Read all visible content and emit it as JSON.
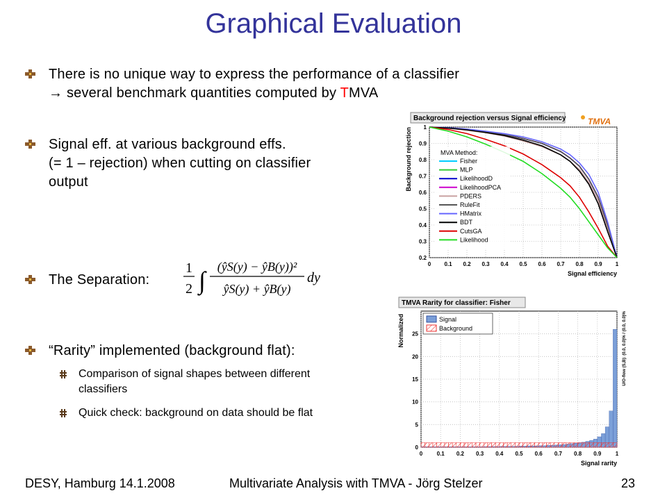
{
  "slide": {
    "title": "Graphical Evaluation",
    "bullets": [
      {
        "line1": "There is no unique way to express the performance of a classifier",
        "line2_prefix": "→ several benchmark quantities computed by ",
        "line2_highlight": "T",
        "line2_suffix": "MVA"
      },
      {
        "lines": [
          "Signal eff. at various background effs.",
          "(= 1 – rejection) when cutting on classifier",
          "output"
        ]
      },
      {
        "label": "The Separation:"
      },
      {
        "text": "“Rarity” implemented (background flat):"
      }
    ],
    "sub_bullets": [
      {
        "lines": [
          "Comparison of signal shapes between different",
          "classifiers"
        ]
      },
      {
        "lines": [
          "Quick check: background on data should be flat"
        ]
      }
    ],
    "formula": {
      "frac_num": "1",
      "frac_den": "2",
      "integral": "∫",
      "numerator": "(ŷS(y) − ŷB(y))²",
      "denominator": "ŷS(y) + ŷB(y)",
      "dy": "dy"
    }
  },
  "footer": {
    "left": "DESY, Hamburg 14.1.2008",
    "center": "Multivariate Analysis with TMVA - Jörg Stelzer",
    "right": "23"
  },
  "colors": {
    "title": "#33339a",
    "highlight": "#ff0000"
  },
  "chart_data": [
    {
      "type": "line",
      "title": "Background rejection versus Signal efficiency",
      "logo": "TMVA",
      "xlabel": "Signal efficiency",
      "ylabel": "Background rejection",
      "xlim": [
        0,
        1
      ],
      "ylim": [
        0.2,
        1
      ],
      "xticks": [
        "0",
        "0.1",
        "0.2",
        "0.3",
        "0.4",
        "0.5",
        "0.6",
        "0.7",
        "0.8",
        "0.9",
        "1"
      ],
      "yticks": [
        "0.2",
        "0.3",
        "0.4",
        "0.5",
        "0.6",
        "0.7",
        "0.8",
        "0.9",
        "1"
      ],
      "grid": true,
      "legend_title": "MVA Method:",
      "legend_position": "left-center",
      "x": [
        0,
        0.1,
        0.2,
        0.3,
        0.4,
        0.5,
        0.6,
        0.7,
        0.75,
        0.8,
        0.85,
        0.9,
        0.95,
        1.0
      ],
      "series": [
        {
          "name": "Fisher",
          "color": "#00ccff",
          "values": [
            1,
            0.995,
            0.985,
            0.97,
            0.955,
            0.93,
            0.9,
            0.85,
            0.81,
            0.76,
            0.68,
            0.57,
            0.4,
            0.2
          ]
        },
        {
          "name": "MLP",
          "color": "#33cc33",
          "values": [
            1,
            0.995,
            0.985,
            0.97,
            0.955,
            0.93,
            0.9,
            0.85,
            0.81,
            0.76,
            0.68,
            0.57,
            0.4,
            0.2
          ]
        },
        {
          "name": "LikelihoodD",
          "color": "#0000cc",
          "values": [
            1,
            0.995,
            0.985,
            0.97,
            0.955,
            0.93,
            0.9,
            0.85,
            0.81,
            0.76,
            0.68,
            0.57,
            0.4,
            0.2
          ]
        },
        {
          "name": "LikelihoodPCA",
          "color": "#cc00cc",
          "values": [
            1,
            0.995,
            0.985,
            0.97,
            0.955,
            0.93,
            0.9,
            0.85,
            0.81,
            0.76,
            0.68,
            0.57,
            0.4,
            0.2
          ]
        },
        {
          "name": "PDERS",
          "color": "#c8a0a0",
          "values": [
            1,
            0.993,
            0.98,
            0.965,
            0.945,
            0.915,
            0.88,
            0.83,
            0.79,
            0.74,
            0.66,
            0.55,
            0.38,
            0.2
          ]
        },
        {
          "name": "RuleFit",
          "color": "#555555",
          "values": [
            1,
            0.995,
            0.986,
            0.972,
            0.955,
            0.93,
            0.9,
            0.85,
            0.81,
            0.76,
            0.68,
            0.57,
            0.4,
            0.2
          ]
        },
        {
          "name": "HMatrix",
          "color": "#6666ff",
          "values": [
            1,
            0.996,
            0.988,
            0.975,
            0.96,
            0.94,
            0.91,
            0.865,
            0.83,
            0.78,
            0.71,
            0.6,
            0.42,
            0.2
          ]
        },
        {
          "name": "BDT",
          "color": "#000000",
          "values": [
            1,
            0.994,
            0.983,
            0.967,
            0.948,
            0.92,
            0.885,
            0.83,
            0.79,
            0.73,
            0.65,
            0.53,
            0.36,
            0.2
          ]
        },
        {
          "name": "CutsGA",
          "color": "#dd0000",
          "values": [
            1,
            0.985,
            0.96,
            0.925,
            0.885,
            0.835,
            0.77,
            0.69,
            0.64,
            0.57,
            0.48,
            0.38,
            0.27,
            0.2
          ]
        },
        {
          "name": "Likelihood",
          "color": "#22dd22",
          "values": [
            1,
            0.975,
            0.94,
            0.895,
            0.845,
            0.79,
            0.715,
            0.625,
            0.57,
            0.5,
            0.42,
            0.34,
            0.26,
            0.2
          ]
        }
      ]
    },
    {
      "type": "bar",
      "title": "TMVA Rarity for classifier: Fisher",
      "xlabel": "Signal rarity",
      "ylabel": "Normalized",
      "side_label": "U/O-flow (S,B): (0.0, 0.0)% / (0.0, 0.0)%",
      "xlim": [
        0,
        1
      ],
      "ylim": [
        0,
        30
      ],
      "xticks": [
        "0",
        "0.1",
        "0.2",
        "0.3",
        "0.4",
        "0.5",
        "0.6",
        "0.7",
        "0.8",
        "0.9",
        "1"
      ],
      "yticks": [
        "0",
        "5",
        "10",
        "15",
        "20",
        "25"
      ],
      "legend_position": "top-left",
      "series": [
        {
          "name": "Signal",
          "color": "#7b9fd8",
          "values": [
            0.1,
            0.1,
            0.1,
            0.1,
            0.1,
            0.1,
            0.1,
            0.1,
            0.1,
            0.1,
            0.1,
            0.1,
            0.1,
            0.1,
            0.1,
            0.1,
            0.15,
            0.15,
            0.15,
            0.15,
            0.2,
            0.2,
            0.2,
            0.2,
            0.2,
            0.25,
            0.25,
            0.3,
            0.3,
            0.3,
            0.35,
            0.35,
            0.4,
            0.45,
            0.5,
            0.55,
            0.6,
            0.7,
            0.8,
            0.9,
            1.0,
            1.1,
            1.3,
            1.5,
            1.8,
            2.3,
            3.0,
            4.5,
            8.0,
            26.0
          ]
        },
        {
          "name": "Background",
          "color": "#ee3333",
          "values": [
            1.0,
            1.0,
            1.0,
            1.0,
            1.0,
            1.0,
            1.0,
            1.0,
            1.0,
            1.0,
            1.0,
            1.0,
            1.0,
            1.0,
            1.0,
            1.0,
            1.0,
            1.0,
            1.0,
            1.0,
            1.0,
            1.0,
            1.0,
            1.0,
            1.0,
            1.0,
            1.0,
            1.0,
            1.0,
            1.0,
            1.0,
            1.0,
            1.0,
            1.0,
            1.0,
            1.0,
            1.0,
            1.0,
            1.0,
            1.0,
            1.0,
            1.0,
            1.0,
            1.0,
            1.0,
            1.0,
            1.0,
            1.0,
            1.0,
            1.0
          ]
        }
      ]
    }
  ]
}
